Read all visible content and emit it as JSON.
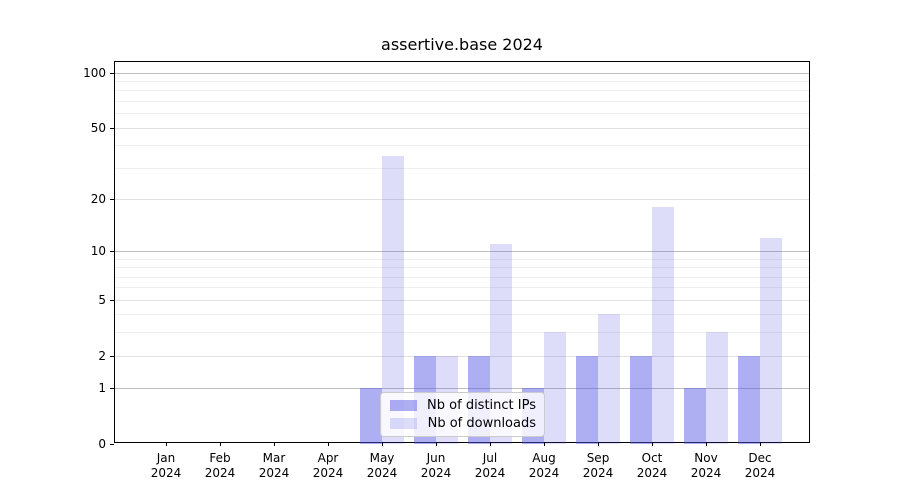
{
  "title": "assertive.base 2024",
  "colors": {
    "ips": "rgba(85,85,230,0.48)",
    "downloads": "rgba(85,85,230,0.20)",
    "grid_decade": "#bdbdbd",
    "grid_major": "#e2e2e2",
    "grid_minor": "#efefef",
    "axis": "#000000"
  },
  "legend": {
    "items": [
      {
        "label": "Nb of distinct IPs",
        "series": "ips"
      },
      {
        "label": "Nb of downloads",
        "series": "downloads"
      }
    ]
  },
  "chart_data": {
    "type": "bar",
    "title": "assertive.base 2024",
    "categories": [
      "Jan",
      "Feb",
      "Mar",
      "Apr",
      "May",
      "Jun",
      "Jul",
      "Aug",
      "Sep",
      "Oct",
      "Nov",
      "Dec"
    ],
    "year": "2024",
    "series": [
      {
        "key": "ips",
        "name": "Nb of distinct IPs",
        "values": [
          0,
          0,
          0,
          0,
          1,
          2,
          2,
          1,
          2,
          2,
          1,
          2
        ]
      },
      {
        "key": "downloads",
        "name": "Nb of downloads",
        "values": [
          0,
          0,
          0,
          0,
          35,
          2,
          11,
          3,
          4,
          18,
          3,
          12
        ]
      }
    ],
    "xlabel": "",
    "ylabel": "",
    "yscale": "log1p",
    "yticks": [
      0,
      1,
      2,
      5,
      10,
      20,
      50,
      100
    ],
    "minor_yticks": [
      3,
      4,
      6,
      7,
      8,
      9,
      30,
      40,
      60,
      70,
      80,
      90
    ],
    "decade_ticks": [
      1,
      10,
      100
    ],
    "ylim": [
      0,
      114
    ],
    "grid": true,
    "legend_position": "lower center"
  }
}
